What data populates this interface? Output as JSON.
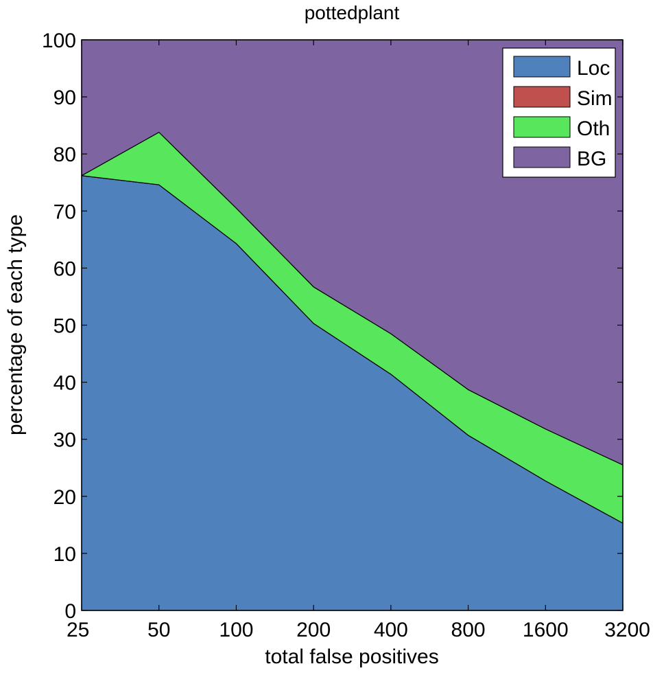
{
  "chart_data": {
    "type": "stacked-area",
    "title": "pottedplant",
    "xlabel": "total false positives",
    "ylabel": "percentage of each type",
    "x": [
      25,
      50,
      100,
      200,
      400,
      800,
      1600,
      3200
    ],
    "xscale": "log",
    "xlim": [
      25,
      3200
    ],
    "xticks": [
      25,
      50,
      100,
      200,
      400,
      800,
      1600,
      3200
    ],
    "ylim": [
      0,
      100
    ],
    "yticks": [
      0,
      10,
      20,
      30,
      40,
      50,
      60,
      70,
      80,
      90,
      100
    ],
    "legend": "upper right",
    "series": [
      {
        "name": "Loc",
        "color": "#4f81bd",
        "values": [
          76.2,
          74.6,
          64.3,
          50.3,
          41.4,
          30.7,
          22.7,
          15.3
        ]
      },
      {
        "name": "Sim",
        "color": "#c0504d",
        "values": [
          0,
          0,
          0,
          0,
          0,
          0,
          0,
          0
        ]
      },
      {
        "name": "Oth",
        "color": "#58e65c",
        "values": [
          0,
          9.2,
          6.2,
          6.4,
          7.1,
          8.0,
          9.1,
          10.2
        ]
      },
      {
        "name": "BG",
        "color": "#7f64a2",
        "values": [
          23.8,
          16.2,
          29.5,
          43.3,
          51.5,
          61.3,
          68.2,
          74.5
        ]
      }
    ]
  }
}
